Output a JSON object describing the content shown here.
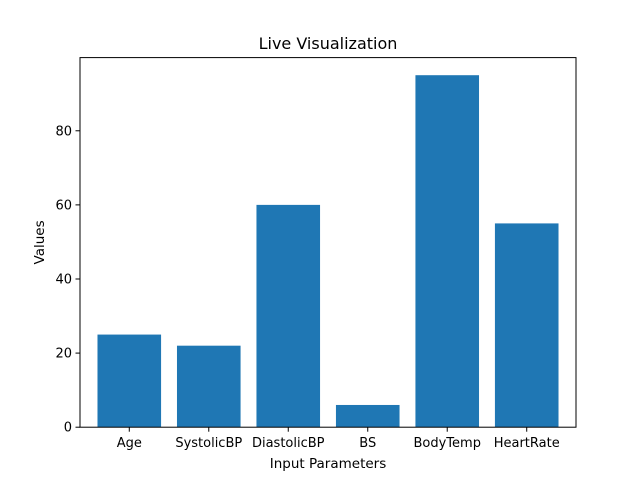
{
  "chart_data": {
    "type": "bar",
    "title": "Live Visualization",
    "xlabel": "Input Parameters",
    "ylabel": "Values",
    "categories": [
      "Age",
      "SystolicBP",
      "DiastolicBP",
      "BS",
      "BodyTemp",
      "HeartRate"
    ],
    "values": [
      25,
      22,
      60,
      6,
      95,
      55
    ],
    "ylim": [
      0,
      99.75
    ],
    "yticks": [
      0,
      20,
      40,
      60,
      80
    ],
    "grid": false,
    "legend": "none",
    "colors": {
      "bar": "#1f77b4",
      "axis": "#000000",
      "background": "#ffffff"
    }
  }
}
